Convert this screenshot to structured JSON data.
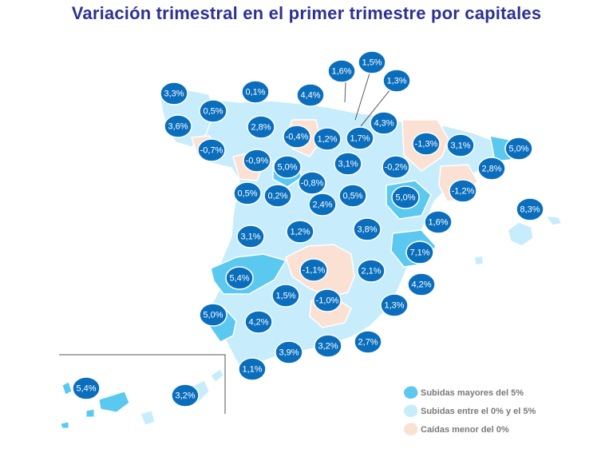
{
  "title": "Variación trimestral en el primer trimestre por capitales",
  "colors": {
    "high": "#5ac8ef",
    "mid": "#c7ecfb",
    "low": "#fbe1d4",
    "border": "#ffffff",
    "bubble": "#0a6ebd",
    "bubble_edge": "#ffffff",
    "title": "#2e3192"
  },
  "legend": [
    {
      "label": "Subidas mayores del 5%",
      "color": "#5ac8ef"
    },
    {
      "label": "Subidas entre el 0% y el 5%",
      "color": "#c7ecfb"
    },
    {
      "label": "Caídas menor del 0%",
      "color": "#fbe1d4"
    }
  ],
  "values": [
    {
      "v": "3,3%"
    },
    {
      "v": "0,1%"
    },
    {
      "v": "4,4%"
    },
    {
      "v": "1,6%"
    },
    {
      "v": "1,5%"
    },
    {
      "v": "1,3%"
    },
    {
      "v": "0,5%"
    },
    {
      "v": "3,6%"
    },
    {
      "v": "2,8%"
    },
    {
      "v": "-0,4%"
    },
    {
      "v": "1,2%"
    },
    {
      "v": "1,7%"
    },
    {
      "v": "4,3%"
    },
    {
      "v": "-1,3%"
    },
    {
      "v": "3,1%"
    },
    {
      "v": "5,0%"
    },
    {
      "v": "-0,7%"
    },
    {
      "v": "-0,9%"
    },
    {
      "v": "5,0%"
    },
    {
      "v": "3,1%"
    },
    {
      "v": "-0,2%"
    },
    {
      "v": "2,8%"
    },
    {
      "v": "-0,8%"
    },
    {
      "v": "-1,2%"
    },
    {
      "v": "0,5%"
    },
    {
      "v": "0,2%"
    },
    {
      "v": "0,5%"
    },
    {
      "v": "5,0%"
    },
    {
      "v": "2,4%"
    },
    {
      "v": "8,3%"
    },
    {
      "v": "1,6%"
    },
    {
      "v": "3,1%"
    },
    {
      "v": "1,2%"
    },
    {
      "v": "3,8%"
    },
    {
      "v": "7,1%"
    },
    {
      "v": "-1,1%"
    },
    {
      "v": "2,1%"
    },
    {
      "v": "5,4%"
    },
    {
      "v": "4,2%"
    },
    {
      "v": "1,5%"
    },
    {
      "v": "-1,0%"
    },
    {
      "v": "1,3%"
    },
    {
      "v": "5,0%"
    },
    {
      "v": "4,2%"
    },
    {
      "v": "3,9%"
    },
    {
      "v": "3,2%"
    },
    {
      "v": "2,7%"
    },
    {
      "v": "1,1%"
    },
    {
      "v": "5,4%"
    },
    {
      "v": "3,2%"
    }
  ]
}
